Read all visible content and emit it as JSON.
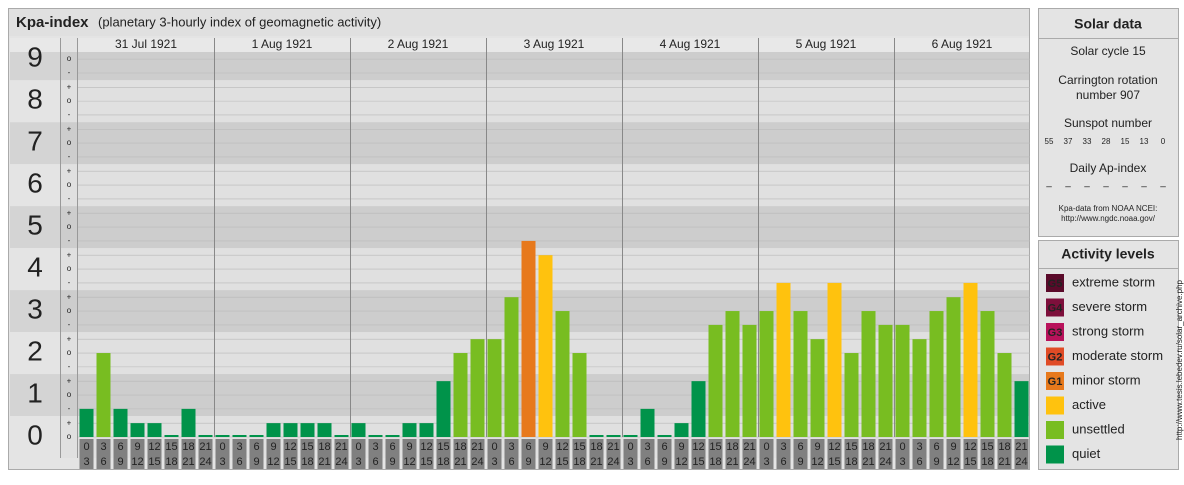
{
  "header": {
    "title": "Kpa-index",
    "subtitle": "(planetary 3-hourly index of geomagnetic activity)"
  },
  "chart_data": {
    "type": "bar",
    "grid": true,
    "ylim": [
      0,
      9.17
    ],
    "yticks": [
      0,
      1,
      2,
      3,
      4,
      5,
      6,
      7,
      8,
      9
    ],
    "minor_ticks": [
      {
        "value": 0,
        "label": "o"
      },
      {
        "value": 0.33,
        "label": "+"
      },
      {
        "value": 0.67,
        "label": "-"
      },
      {
        "value": 1,
        "label": "o"
      },
      {
        "value": 1.33,
        "label": "+"
      },
      {
        "value": 1.67,
        "label": "-"
      },
      {
        "value": 2,
        "label": "o"
      },
      {
        "value": 2.33,
        "label": "+"
      },
      {
        "value": 2.67,
        "label": "-"
      },
      {
        "value": 3,
        "label": "o"
      },
      {
        "value": 3.33,
        "label": "+"
      },
      {
        "value": 3.67,
        "label": "-"
      },
      {
        "value": 4,
        "label": "o"
      },
      {
        "value": 4.33,
        "label": "+"
      },
      {
        "value": 4.67,
        "label": "-"
      },
      {
        "value": 5,
        "label": "o"
      },
      {
        "value": 5.33,
        "label": "+"
      },
      {
        "value": 5.67,
        "label": "-"
      },
      {
        "value": 6,
        "label": "o"
      },
      {
        "value": 6.33,
        "label": "+"
      },
      {
        "value": 6.67,
        "label": "-"
      },
      {
        "value": 7,
        "label": "o"
      },
      {
        "value": 7.33,
        "label": "+"
      },
      {
        "value": 7.67,
        "label": "-"
      },
      {
        "value": 8,
        "label": "o"
      },
      {
        "value": 8.33,
        "label": "+"
      },
      {
        "value": 8.67,
        "label": "-"
      },
      {
        "value": 9,
        "label": "o"
      }
    ],
    "interval_labels": [
      [
        "0",
        "3"
      ],
      [
        "3",
        "6"
      ],
      [
        "6",
        "9"
      ],
      [
        "9",
        "12"
      ],
      [
        "12",
        "15"
      ],
      [
        "15",
        "18"
      ],
      [
        "18",
        "21"
      ],
      [
        "21",
        "24"
      ]
    ],
    "days": [
      {
        "label": "31 Jul 1921",
        "values": [
          0.67,
          2,
          0.67,
          0.33,
          0.33,
          0,
          0.67,
          0
        ],
        "colors": [
          "#00934a",
          "#78bd21",
          "#00934a",
          "#00934a",
          "#00934a",
          "#00934a",
          "#00934a",
          "#00934a"
        ]
      },
      {
        "label": "1 Aug 1921",
        "values": [
          0,
          0,
          0,
          0.33,
          0.33,
          0.33,
          0.33,
          0
        ],
        "colors": [
          "#00934a",
          "#00934a",
          "#00934a",
          "#00934a",
          "#00934a",
          "#00934a",
          "#00934a",
          "#00934a"
        ]
      },
      {
        "label": "2 Aug 1921",
        "values": [
          0.33,
          0,
          0,
          0.33,
          0.33,
          1.33,
          2,
          2.33
        ],
        "colors": [
          "#00934a",
          "#00934a",
          "#00934a",
          "#00934a",
          "#00934a",
          "#00934a",
          "#78bd21",
          "#78bd21"
        ]
      },
      {
        "label": "3 Aug 1921",
        "values": [
          2.33,
          3.33,
          4.67,
          4.33,
          3,
          2,
          0,
          0
        ],
        "colors": [
          "#78bd21",
          "#78bd21",
          "#e7791c",
          "#ffc20e",
          "#78bd21",
          "#78bd21",
          "#00934a",
          "#00934a"
        ]
      },
      {
        "label": "4 Aug 1921",
        "values": [
          0,
          0.67,
          0,
          0.33,
          1.33,
          2.67,
          3,
          2.67
        ],
        "colors": [
          "#00934a",
          "#00934a",
          "#00934a",
          "#00934a",
          "#00934a",
          "#78bd21",
          "#78bd21",
          "#78bd21"
        ]
      },
      {
        "label": "5 Aug 1921",
        "values": [
          3,
          3.67,
          3,
          2.33,
          3.67,
          2,
          3,
          2.67
        ],
        "colors": [
          "#78bd21",
          "#ffc20e",
          "#78bd21",
          "#78bd21",
          "#ffc20e",
          "#78bd21",
          "#78bd21",
          "#78bd21"
        ]
      },
      {
        "label": "6 Aug 1921",
        "values": [
          2.67,
          2.33,
          3,
          3.33,
          3.67,
          3,
          2,
          1.33
        ],
        "colors": [
          "#78bd21",
          "#78bd21",
          "#78bd21",
          "#78bd21",
          "#ffc20e",
          "#78bd21",
          "#78bd21",
          "#00934a"
        ]
      }
    ]
  },
  "solar_data": {
    "title": "Solar data",
    "cycle": "Solar cycle 15",
    "carrington": [
      "Carrington rotation",
      "number 907"
    ],
    "sunspot_title": "Sunspot number",
    "sunspots": [
      55,
      37,
      33,
      28,
      15,
      13,
      0
    ],
    "ap_title": "Daily Ap-index",
    "ap": [
      "–",
      "–",
      "–",
      "–",
      "–",
      "–",
      "–"
    ],
    "source": "Kpa-data from NOAA NCEI:",
    "source_url": "http://www.ngdc.noaa.gov/"
  },
  "activity_levels": {
    "title": "Activity levels",
    "items": [
      {
        "code": "G5",
        "label": "extreme storm",
        "color": "#5a0a2a"
      },
      {
        "code": "G4",
        "label": "severe storm",
        "color": "#7d0f3b"
      },
      {
        "code": "G3",
        "label": "strong storm",
        "color": "#b8125b"
      },
      {
        "code": "G2",
        "label": "moderate storm",
        "color": "#e04b26"
      },
      {
        "code": "G1",
        "label": "minor storm",
        "color": "#e7791c"
      },
      {
        "label": "active",
        "color": "#ffc20e"
      },
      {
        "label": "unsettled",
        "color": "#78bd21"
      },
      {
        "label": "quiet",
        "color": "#00934a"
      }
    ]
  },
  "credit": "http://www.tesis.lebedev.ru/solar_archive.php"
}
